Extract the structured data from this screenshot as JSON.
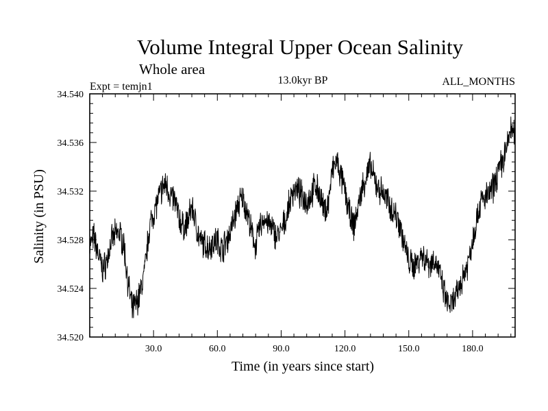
{
  "chart_data": {
    "type": "line",
    "title": "Volume Integral Upper Ocean Salinity",
    "subtitle": "Whole area",
    "experiment": "Expt = temjn1",
    "period": "13.0kyr BP",
    "months": "ALL_MONTHS",
    "xlabel": "Time (in years since start)",
    "ylabel": "Salinity (in PSU)",
    "xlim": [
      0,
      200
    ],
    "ylim": [
      34.52,
      34.54
    ],
    "x_ticks": [
      30,
      60,
      90,
      120,
      150,
      180
    ],
    "x_tick_labels": [
      "30.0",
      "60.0",
      "90.0",
      "120.0",
      "150.0",
      "180.0"
    ],
    "y_ticks": [
      34.52,
      34.524,
      34.528,
      34.532,
      34.536,
      34.54
    ],
    "y_tick_labels": [
      "34.520",
      "34.524",
      "34.528",
      "34.532",
      "34.536",
      "34.540"
    ],
    "series": [
      {
        "name": "temjn1",
        "color": "#000000",
        "x": [
          0,
          2,
          4,
          6,
          8,
          10,
          12,
          14,
          16,
          18,
          20,
          22,
          24,
          26,
          28,
          30,
          32,
          34,
          36,
          38,
          40,
          42,
          44,
          46,
          48,
          50,
          52,
          54,
          56,
          58,
          60,
          62,
          64,
          66,
          68,
          70,
          72,
          74,
          76,
          78,
          80,
          82,
          84,
          86,
          88,
          90,
          92,
          94,
          96,
          98,
          100,
          102,
          104,
          106,
          108,
          110,
          112,
          114,
          116,
          118,
          120,
          122,
          124,
          126,
          128,
          130,
          132,
          134,
          136,
          138,
          140,
          142,
          144,
          146,
          148,
          150,
          152,
          154,
          156,
          158,
          160,
          162,
          164,
          166,
          168,
          170,
          172,
          174,
          176,
          178,
          180,
          182,
          184,
          186,
          188,
          190,
          192,
          194,
          196,
          198,
          200
        ],
        "values": [
          34.5275,
          34.5282,
          34.5268,
          34.5255,
          34.5262,
          34.5278,
          34.5284,
          34.5286,
          34.5276,
          34.5245,
          34.5222,
          34.5228,
          34.5238,
          34.5256,
          34.529,
          34.5302,
          34.5312,
          34.5322,
          34.5326,
          34.5316,
          34.5312,
          34.5298,
          34.529,
          34.5294,
          34.5308,
          34.5292,
          34.5278,
          34.5276,
          34.5274,
          34.5278,
          34.528,
          34.5272,
          34.5278,
          34.5286,
          34.5298,
          34.531,
          34.5314,
          34.5303,
          34.5286,
          34.5275,
          34.529,
          34.5298,
          34.5293,
          34.5288,
          34.5283,
          34.5286,
          34.5296,
          34.531,
          34.5322,
          34.532,
          34.5315,
          34.5312,
          34.5316,
          34.5325,
          34.5318,
          34.5304,
          34.5308,
          34.5336,
          34.5345,
          34.5332,
          34.532,
          34.5302,
          34.529,
          34.5305,
          34.5322,
          34.5332,
          34.534,
          34.5328,
          34.5322,
          34.5318,
          34.5312,
          34.5305,
          34.53,
          34.5292,
          34.5275,
          34.5262,
          34.5258,
          34.5262,
          34.5268,
          34.5264,
          34.526,
          34.5264,
          34.5256,
          34.524,
          34.5228,
          34.5226,
          34.5232,
          34.5242,
          34.5252,
          34.5262,
          34.528,
          34.5298,
          34.5312,
          34.5314,
          34.5318,
          34.5324,
          34.5336,
          34.5344,
          34.5355,
          34.5372,
          34.5364
        ]
      }
    ]
  }
}
